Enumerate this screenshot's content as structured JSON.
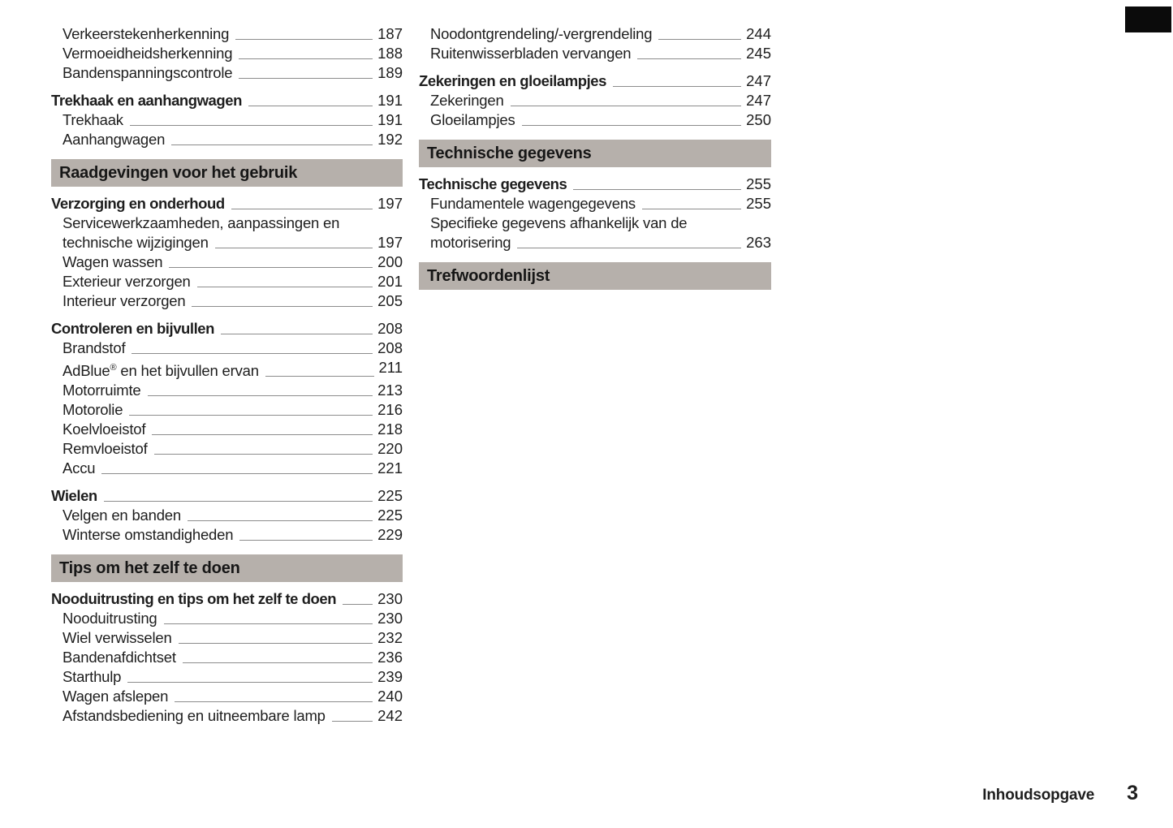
{
  "colors": {
    "header_bar_bg": "#b6b0ab",
    "text": "#1e1e1e",
    "leader_line": "#8c8c8c",
    "chapter_tab": "#000000"
  },
  "footer": {
    "label": "Inhoudsopgave",
    "page_number": "3"
  },
  "columns": [
    {
      "items": [
        {
          "kind": "entry",
          "label": "Verkeerstekenherkenning",
          "page": "187",
          "bold": false,
          "indent": true
        },
        {
          "kind": "entry",
          "label": "Vermoeidheidsherkenning",
          "page": "188",
          "bold": false,
          "indent": true
        },
        {
          "kind": "entry",
          "label": "Bandenspanningscontrole",
          "page": "189",
          "bold": false,
          "indent": true
        },
        {
          "kind": "entry",
          "label": "Trekhaak en aanhangwagen",
          "page": "191",
          "bold": true,
          "indent": false
        },
        {
          "kind": "entry",
          "label": "Trekhaak",
          "page": "191",
          "bold": false,
          "indent": true
        },
        {
          "kind": "entry",
          "label": "Aanhangwagen",
          "page": "192",
          "bold": false,
          "indent": true
        },
        {
          "kind": "section",
          "label": "Raadgevingen voor het gebruik"
        },
        {
          "kind": "entry",
          "label": "Verzorging en onderhoud",
          "page": "197",
          "bold": true,
          "indent": false
        },
        {
          "kind": "entry",
          "label": "Servicewerkzaamheden, aanpassingen en",
          "page": null,
          "bold": false,
          "indent": true
        },
        {
          "kind": "entry",
          "label": "technische wijzigingen",
          "page": "197",
          "bold": false,
          "indent": true
        },
        {
          "kind": "entry",
          "label": "Wagen wassen",
          "page": "200",
          "bold": false,
          "indent": true
        },
        {
          "kind": "entry",
          "label": "Exterieur verzorgen",
          "page": "201",
          "bold": false,
          "indent": true
        },
        {
          "kind": "entry",
          "label": "Interieur verzorgen",
          "page": "205",
          "bold": false,
          "indent": true
        },
        {
          "kind": "entry",
          "label": "Controleren en bijvullen",
          "page": "208",
          "bold": true,
          "indent": false
        },
        {
          "kind": "entry",
          "label": "Brandstof",
          "page": "208",
          "bold": false,
          "indent": true
        },
        {
          "kind": "entry",
          "label": "AdBlue® en het bijvullen ervan",
          "page": "211",
          "bold": false,
          "indent": true
        },
        {
          "kind": "entry",
          "label": "Motorruimte",
          "page": "213",
          "bold": false,
          "indent": true
        },
        {
          "kind": "entry",
          "label": "Motorolie",
          "page": "216",
          "bold": false,
          "indent": true
        },
        {
          "kind": "entry",
          "label": "Koelvloeistof",
          "page": "218",
          "bold": false,
          "indent": true
        },
        {
          "kind": "entry",
          "label": "Remvloeistof",
          "page": "220",
          "bold": false,
          "indent": true
        },
        {
          "kind": "entry",
          "label": "Accu",
          "page": "221",
          "bold": false,
          "indent": true
        },
        {
          "kind": "entry",
          "label": "Wielen",
          "page": "225",
          "bold": true,
          "indent": false
        },
        {
          "kind": "entry",
          "label": "Velgen en banden",
          "page": "225",
          "bold": false,
          "indent": true
        },
        {
          "kind": "entry",
          "label": "Winterse omstandigheden",
          "page": "229",
          "bold": false,
          "indent": true
        },
        {
          "kind": "section",
          "label": "Tips om het zelf te doen"
        },
        {
          "kind": "entry",
          "label": "Nooduitrusting en tips om het zelf te doen",
          "page": "230",
          "bold": true,
          "indent": false
        },
        {
          "kind": "entry",
          "label": "Nooduitrusting",
          "page": "230",
          "bold": false,
          "indent": true
        },
        {
          "kind": "entry",
          "label": "Wiel verwisselen",
          "page": "232",
          "bold": false,
          "indent": true
        },
        {
          "kind": "entry",
          "label": "Bandenafdichtset",
          "page": "236",
          "bold": false,
          "indent": true
        },
        {
          "kind": "entry",
          "label": "Starthulp",
          "page": "239",
          "bold": false,
          "indent": true
        },
        {
          "kind": "entry",
          "label": "Wagen afslepen",
          "page": "240",
          "bold": false,
          "indent": true
        },
        {
          "kind": "entry",
          "label": "Afstandsbediening en uitneembare lamp",
          "page": "242",
          "bold": false,
          "indent": true
        }
      ]
    },
    {
      "items": [
        {
          "kind": "entry",
          "label": "Noodontgrendeling/-vergrendeling",
          "page": "244",
          "bold": false,
          "indent": true
        },
        {
          "kind": "entry",
          "label": "Ruitenwisserbladen vervangen",
          "page": "245",
          "bold": false,
          "indent": true
        },
        {
          "kind": "entry",
          "label": "Zekeringen en gloeilampjes",
          "page": "247",
          "bold": true,
          "indent": false
        },
        {
          "kind": "entry",
          "label": "Zekeringen",
          "page": "247",
          "bold": false,
          "indent": true
        },
        {
          "kind": "entry",
          "label": "Gloeilampjes",
          "page": "250",
          "bold": false,
          "indent": true
        },
        {
          "kind": "section",
          "label": "Technische gegevens"
        },
        {
          "kind": "entry",
          "label": "Technische gegevens",
          "page": "255",
          "bold": true,
          "indent": false
        },
        {
          "kind": "entry",
          "label": "Fundamentele wagengegevens",
          "page": "255",
          "bold": false,
          "indent": true
        },
        {
          "kind": "entry",
          "label": "Specifieke gegevens afhankelijk van de",
          "page": null,
          "bold": false,
          "indent": true
        },
        {
          "kind": "entry",
          "label": "motorisering",
          "page": "263",
          "bold": false,
          "indent": true
        },
        {
          "kind": "section",
          "label": "Trefwoordenlijst"
        }
      ]
    }
  ]
}
